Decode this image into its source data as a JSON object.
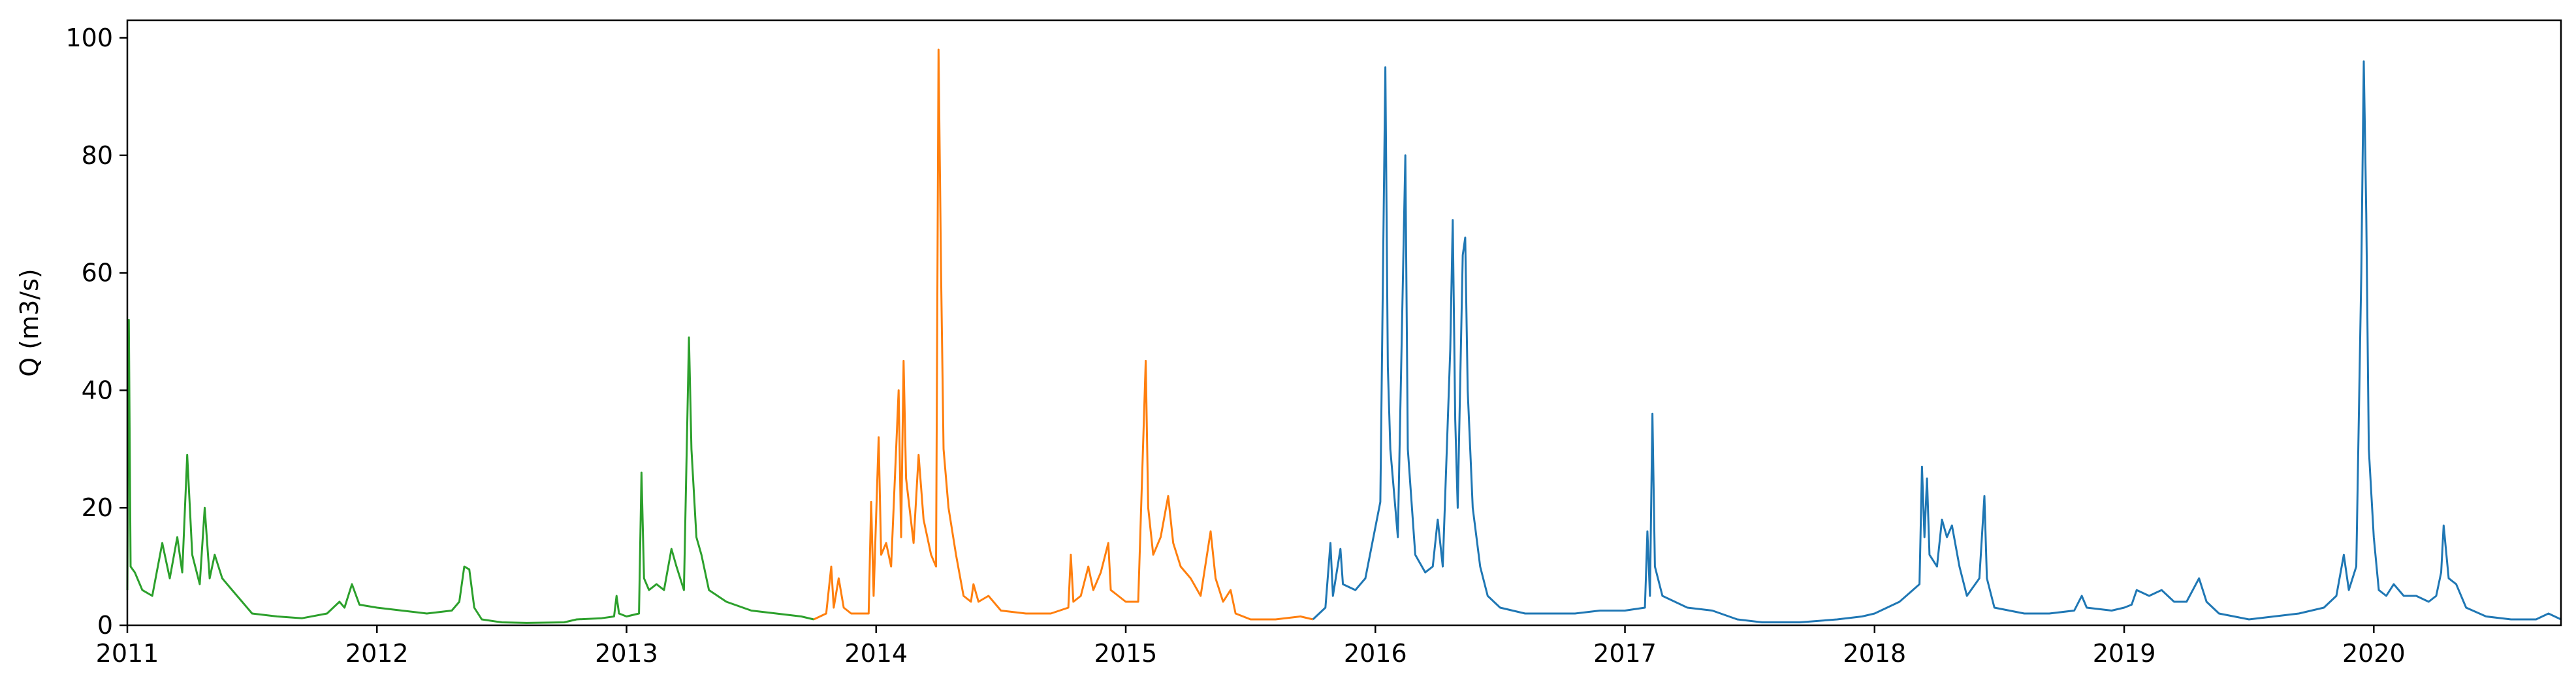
{
  "chart_data": {
    "type": "line",
    "title": "",
    "xlabel": "",
    "ylabel": "Q (m3/s)",
    "xlim": [
      2011.0,
      2020.75
    ],
    "ylim": [
      0,
      103
    ],
    "grid": false,
    "legend": "none",
    "x_ticks": [
      "2011",
      "2012",
      "2013",
      "2014",
      "2015",
      "2016",
      "2017",
      "2018",
      "2019",
      "2020"
    ],
    "y_ticks": [
      "0",
      "20",
      "40",
      "60",
      "80",
      "100"
    ],
    "x_tick_values": [
      2011,
      2012,
      2013,
      2014,
      2015,
      2016,
      2017,
      2018,
      2019,
      2020
    ],
    "y_tick_values": [
      0,
      20,
      40,
      60,
      80,
      100
    ],
    "series": [
      {
        "color": "#2ca02c",
        "points": [
          [
            2011.0,
            6
          ],
          [
            2011.006,
            52
          ],
          [
            2011.013,
            10
          ],
          [
            2011.03,
            9
          ],
          [
            2011.06,
            6
          ],
          [
            2011.1,
            5
          ],
          [
            2011.14,
            14
          ],
          [
            2011.17,
            8
          ],
          [
            2011.2,
            15
          ],
          [
            2011.22,
            9
          ],
          [
            2011.24,
            29
          ],
          [
            2011.26,
            12
          ],
          [
            2011.29,
            7
          ],
          [
            2011.31,
            20
          ],
          [
            2011.33,
            8
          ],
          [
            2011.35,
            12
          ],
          [
            2011.38,
            8
          ],
          [
            2011.42,
            6
          ],
          [
            2011.46,
            4
          ],
          [
            2011.5,
            2
          ],
          [
            2011.6,
            1.5
          ],
          [
            2011.7,
            1.2
          ],
          [
            2011.8,
            2
          ],
          [
            2011.85,
            4
          ],
          [
            2011.87,
            3
          ],
          [
            2011.9,
            7
          ],
          [
            2011.93,
            3.5
          ],
          [
            2012.0,
            3
          ],
          [
            2012.1,
            2.5
          ],
          [
            2012.2,
            2
          ],
          [
            2012.3,
            2.5
          ],
          [
            2012.33,
            4
          ],
          [
            2012.35,
            10
          ],
          [
            2012.37,
            9.5
          ],
          [
            2012.39,
            3
          ],
          [
            2012.42,
            1
          ],
          [
            2012.5,
            0.5
          ],
          [
            2012.6,
            0.4
          ],
          [
            2012.75,
            0.5
          ],
          [
            2012.8,
            1
          ],
          [
            2012.9,
            1.2
          ],
          [
            2012.95,
            1.5
          ],
          [
            2012.96,
            5
          ],
          [
            2012.97,
            2
          ],
          [
            2013.0,
            1.5
          ],
          [
            2013.05,
            2
          ],
          [
            2013.06,
            26
          ],
          [
            2013.07,
            8
          ],
          [
            2013.09,
            6
          ],
          [
            2013.12,
            7
          ],
          [
            2013.15,
            6
          ],
          [
            2013.18,
            13
          ],
          [
            2013.2,
            10
          ],
          [
            2013.23,
            6
          ],
          [
            2013.25,
            49
          ],
          [
            2013.26,
            30
          ],
          [
            2013.28,
            15
          ],
          [
            2013.3,
            12
          ],
          [
            2013.33,
            6
          ],
          [
            2013.4,
            4
          ],
          [
            2013.5,
            2.5
          ],
          [
            2013.6,
            2
          ],
          [
            2013.7,
            1.5
          ],
          [
            2013.75,
            1
          ]
        ]
      },
      {
        "color": "#ff7f0e",
        "points": [
          [
            2013.75,
            1
          ],
          [
            2013.8,
            2
          ],
          [
            2013.82,
            10
          ],
          [
            2013.83,
            3
          ],
          [
            2013.85,
            8
          ],
          [
            2013.87,
            3
          ],
          [
            2013.9,
            2
          ],
          [
            2013.97,
            2
          ],
          [
            2013.98,
            21
          ],
          [
            2013.99,
            5
          ],
          [
            2014.01,
            32
          ],
          [
            2014.02,
            12
          ],
          [
            2014.04,
            14
          ],
          [
            2014.06,
            10
          ],
          [
            2014.09,
            40
          ],
          [
            2014.1,
            15
          ],
          [
            2014.11,
            45
          ],
          [
            2014.12,
            25
          ],
          [
            2014.15,
            14
          ],
          [
            2014.17,
            29
          ],
          [
            2014.19,
            18
          ],
          [
            2014.22,
            12
          ],
          [
            2014.24,
            10
          ],
          [
            2014.25,
            98
          ],
          [
            2014.26,
            60
          ],
          [
            2014.27,
            30
          ],
          [
            2014.29,
            20
          ],
          [
            2014.32,
            12
          ],
          [
            2014.35,
            5
          ],
          [
            2014.38,
            4
          ],
          [
            2014.39,
            7
          ],
          [
            2014.41,
            4
          ],
          [
            2014.45,
            5
          ],
          [
            2014.5,
            2.5
          ],
          [
            2014.6,
            2
          ],
          [
            2014.7,
            2
          ],
          [
            2014.77,
            3
          ],
          [
            2014.78,
            12
          ],
          [
            2014.79,
            4
          ],
          [
            2014.82,
            5
          ],
          [
            2014.85,
            10
          ],
          [
            2014.87,
            6
          ],
          [
            2014.9,
            9
          ],
          [
            2014.93,
            14
          ],
          [
            2014.94,
            6
          ],
          [
            2014.97,
            5
          ],
          [
            2015.0,
            4
          ],
          [
            2015.05,
            4
          ],
          [
            2015.08,
            45
          ],
          [
            2015.09,
            20
          ],
          [
            2015.11,
            12
          ],
          [
            2015.14,
            15
          ],
          [
            2015.17,
            22
          ],
          [
            2015.19,
            14
          ],
          [
            2015.22,
            10
          ],
          [
            2015.26,
            8
          ],
          [
            2015.3,
            5
          ],
          [
            2015.34,
            16
          ],
          [
            2015.36,
            8
          ],
          [
            2015.39,
            4
          ],
          [
            2015.42,
            6
          ],
          [
            2015.44,
            2
          ],
          [
            2015.5,
            1
          ],
          [
            2015.6,
            1
          ],
          [
            2015.7,
            1.5
          ],
          [
            2015.75,
            1
          ]
        ]
      },
      {
        "color": "#1f77b4",
        "points": [
          [
            2015.75,
            1
          ],
          [
            2015.8,
            3
          ],
          [
            2015.82,
            14
          ],
          [
            2015.83,
            5
          ],
          [
            2015.86,
            13
          ],
          [
            2015.87,
            7
          ],
          [
            2015.92,
            6
          ],
          [
            2015.96,
            8
          ],
          [
            2016.02,
            21
          ],
          [
            2016.04,
            95
          ],
          [
            2016.05,
            44
          ],
          [
            2016.06,
            30
          ],
          [
            2016.09,
            15
          ],
          [
            2016.12,
            80
          ],
          [
            2016.13,
            30
          ],
          [
            2016.16,
            12
          ],
          [
            2016.2,
            9
          ],
          [
            2016.23,
            10
          ],
          [
            2016.25,
            18
          ],
          [
            2016.27,
            10
          ],
          [
            2016.3,
            47
          ],
          [
            2016.31,
            69
          ],
          [
            2016.32,
            35
          ],
          [
            2016.33,
            20
          ],
          [
            2016.35,
            63
          ],
          [
            2016.36,
            66
          ],
          [
            2016.37,
            40
          ],
          [
            2016.39,
            20
          ],
          [
            2016.42,
            10
          ],
          [
            2016.45,
            5
          ],
          [
            2016.5,
            3
          ],
          [
            2016.6,
            2
          ],
          [
            2016.7,
            2
          ],
          [
            2016.8,
            2
          ],
          [
            2016.9,
            2.5
          ],
          [
            2017.0,
            2.5
          ],
          [
            2017.08,
            3
          ],
          [
            2017.09,
            16
          ],
          [
            2017.1,
            5
          ],
          [
            2017.11,
            36
          ],
          [
            2017.12,
            10
          ],
          [
            2017.15,
            5
          ],
          [
            2017.25,
            3
          ],
          [
            2017.35,
            2.5
          ],
          [
            2017.45,
            1
          ],
          [
            2017.55,
            0.5
          ],
          [
            2017.7,
            0.5
          ],
          [
            2017.85,
            1
          ],
          [
            2017.95,
            1.5
          ],
          [
            2018.0,
            2
          ],
          [
            2018.1,
            4
          ],
          [
            2018.18,
            7
          ],
          [
            2018.19,
            27
          ],
          [
            2018.2,
            15
          ],
          [
            2018.21,
            25
          ],
          [
            2018.22,
            12
          ],
          [
            2018.25,
            10
          ],
          [
            2018.27,
            18
          ],
          [
            2018.29,
            15
          ],
          [
            2018.31,
            17
          ],
          [
            2018.34,
            10
          ],
          [
            2018.37,
            5
          ],
          [
            2018.42,
            8
          ],
          [
            2018.44,
            22
          ],
          [
            2018.45,
            8
          ],
          [
            2018.48,
            3
          ],
          [
            2018.6,
            2
          ],
          [
            2018.7,
            2
          ],
          [
            2018.8,
            2.5
          ],
          [
            2018.83,
            5
          ],
          [
            2018.85,
            3
          ],
          [
            2018.95,
            2.5
          ],
          [
            2019.0,
            3
          ],
          [
            2019.03,
            3.5
          ],
          [
            2019.05,
            6
          ],
          [
            2019.1,
            5
          ],
          [
            2019.15,
            6
          ],
          [
            2019.2,
            4
          ],
          [
            2019.25,
            4
          ],
          [
            2019.3,
            8
          ],
          [
            2019.33,
            4
          ],
          [
            2019.38,
            2
          ],
          [
            2019.5,
            1
          ],
          [
            2019.6,
            1.5
          ],
          [
            2019.7,
            2
          ],
          [
            2019.8,
            3
          ],
          [
            2019.85,
            5
          ],
          [
            2019.88,
            12
          ],
          [
            2019.9,
            6
          ],
          [
            2019.93,
            10
          ],
          [
            2019.95,
            60
          ],
          [
            2019.96,
            96
          ],
          [
            2019.97,
            70
          ],
          [
            2019.98,
            30
          ],
          [
            2020.0,
            15
          ],
          [
            2020.02,
            6
          ],
          [
            2020.05,
            5
          ],
          [
            2020.08,
            7
          ],
          [
            2020.12,
            5
          ],
          [
            2020.17,
            5
          ],
          [
            2020.22,
            4
          ],
          [
            2020.25,
            5
          ],
          [
            2020.27,
            9
          ],
          [
            2020.28,
            17
          ],
          [
            2020.3,
            8
          ],
          [
            2020.33,
            7
          ],
          [
            2020.37,
            3
          ],
          [
            2020.45,
            1.5
          ],
          [
            2020.55,
            1
          ],
          [
            2020.65,
            1
          ],
          [
            2020.7,
            2
          ],
          [
            2020.75,
            1
          ]
        ]
      }
    ]
  }
}
